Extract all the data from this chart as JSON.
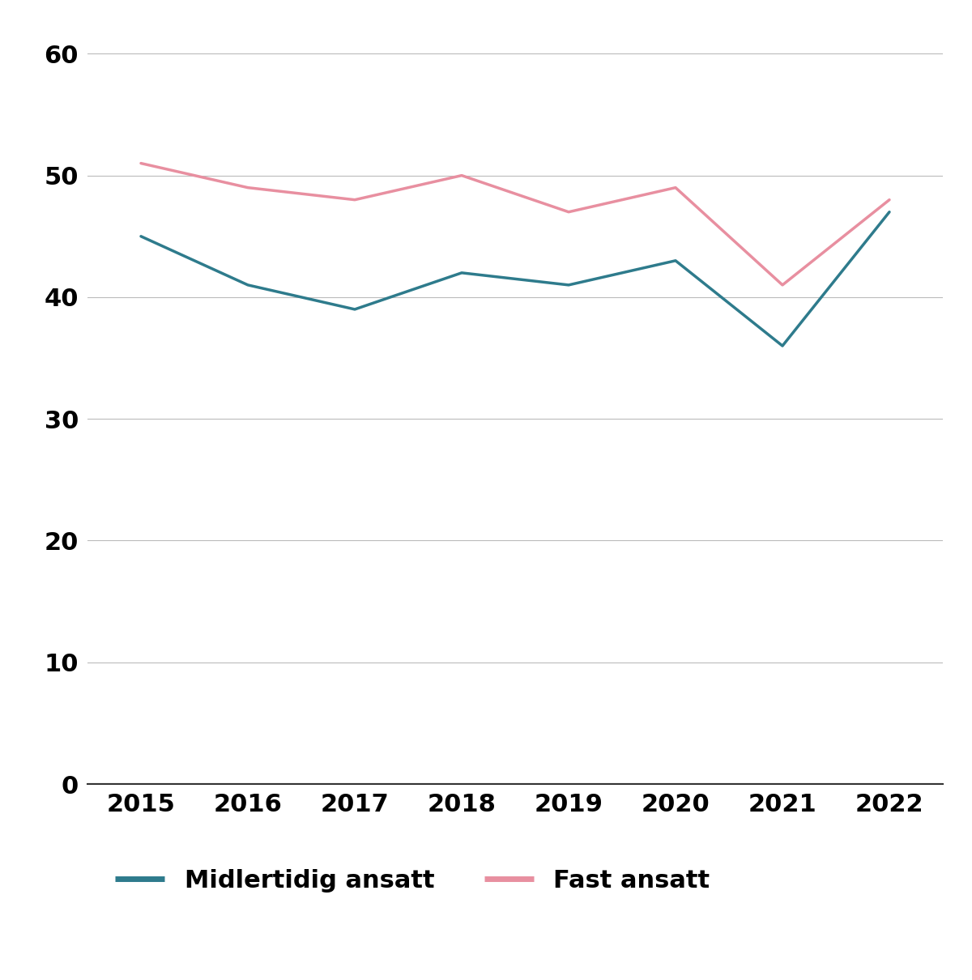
{
  "years": [
    2015,
    2016,
    2017,
    2018,
    2019,
    2020,
    2021,
    2022
  ],
  "midlertidig": [
    45,
    41,
    39,
    42,
    41,
    43,
    36,
    47
  ],
  "fast": [
    51,
    49,
    48,
    50,
    47,
    49,
    41,
    48
  ],
  "midlertidig_color": "#2e7b8c",
  "fast_color": "#e88fa0",
  "midlertidig_label": "Midlertidig ansatt",
  "fast_label": "Fast ansatt",
  "ylim": [
    0,
    62
  ],
  "yticks": [
    0,
    10,
    20,
    30,
    40,
    50,
    60
  ],
  "xlim": [
    2014.5,
    2022.5
  ],
  "line_width": 2.5,
  "grid_color": "#bbbbbb",
  "background_color": "#ffffff",
  "tick_fontsize": 22,
  "legend_fontsize": 22,
  "bottom_spine_color": "#333333"
}
